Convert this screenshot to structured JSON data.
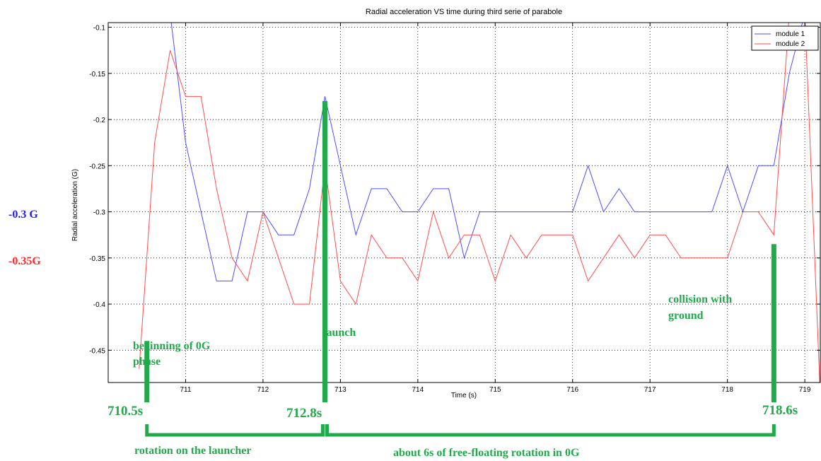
{
  "chart_data": {
    "type": "line",
    "title": "Radial acceleration VS time during third serie of parabole",
    "xlabel": "Time (s)",
    "ylabel": "Radial acceleration (G)",
    "xlim": [
      710.0,
      719.2
    ],
    "ylim": [
      -0.485,
      -0.095
    ],
    "x_ticks": [
      711,
      712,
      713,
      714,
      715,
      716,
      717,
      718,
      719
    ],
    "x_tick_labels": [
      "711",
      "712",
      "713",
      "714",
      "715",
      "716",
      "717",
      "718",
      "719"
    ],
    "y_ticks": [
      -0.1,
      -0.15,
      -0.2,
      -0.25,
      -0.3,
      -0.35,
      -0.4,
      -0.45
    ],
    "y_tick_labels": [
      "-0.1",
      "-0.15",
      "-0.2",
      "-0.25",
      "-0.3",
      "-0.35",
      "-0.4",
      "-0.45"
    ],
    "grid": true,
    "legend_position": "top-right",
    "series": [
      {
        "name": "module 1",
        "color": "#4d4dff",
        "points": [
          [
            710.8,
            -0.085
          ],
          [
            711.0,
            -0.225
          ],
          [
            711.2,
            -0.3
          ],
          [
            711.4,
            -0.375
          ],
          [
            711.6,
            -0.375
          ],
          [
            711.8,
            -0.3
          ],
          [
            712.0,
            -0.3
          ],
          [
            712.2,
            -0.325
          ],
          [
            712.4,
            -0.325
          ],
          [
            712.6,
            -0.275
          ],
          [
            712.8,
            -0.175
          ],
          [
            713.0,
            -0.25
          ],
          [
            713.2,
            -0.325
          ],
          [
            713.4,
            -0.275
          ],
          [
            713.6,
            -0.275
          ],
          [
            713.8,
            -0.3
          ],
          [
            714.0,
            -0.3
          ],
          [
            714.2,
            -0.275
          ],
          [
            714.4,
            -0.275
          ],
          [
            714.6,
            -0.35
          ],
          [
            714.8,
            -0.3
          ],
          [
            715.0,
            -0.3
          ],
          [
            715.2,
            -0.3
          ],
          [
            715.4,
            -0.3
          ],
          [
            715.6,
            -0.3
          ],
          [
            715.8,
            -0.3
          ],
          [
            716.0,
            -0.3
          ],
          [
            716.2,
            -0.25
          ],
          [
            716.4,
            -0.3
          ],
          [
            716.6,
            -0.275
          ],
          [
            716.8,
            -0.3
          ],
          [
            717.0,
            -0.3
          ],
          [
            717.2,
            -0.3
          ],
          [
            717.4,
            -0.3
          ],
          [
            717.6,
            -0.3
          ],
          [
            717.8,
            -0.3
          ],
          [
            718.0,
            -0.25
          ],
          [
            718.2,
            -0.3
          ],
          [
            718.4,
            -0.25
          ],
          [
            718.6,
            -0.25
          ],
          [
            718.8,
            -0.15
          ],
          [
            719.0,
            -0.085
          ]
        ]
      },
      {
        "name": "module 2",
        "color": "#ff4d4d",
        "points": [
          [
            710.4,
            -0.47
          ],
          [
            710.6,
            -0.225
          ],
          [
            710.8,
            -0.125
          ],
          [
            711.0,
            -0.175
          ],
          [
            711.2,
            -0.175
          ],
          [
            711.4,
            -0.275
          ],
          [
            711.6,
            -0.35
          ],
          [
            711.8,
            -0.375
          ],
          [
            712.0,
            -0.3
          ],
          [
            712.2,
            -0.35
          ],
          [
            712.4,
            -0.4
          ],
          [
            712.6,
            -0.4
          ],
          [
            712.8,
            -0.25
          ],
          [
            713.0,
            -0.375
          ],
          [
            713.2,
            -0.4
          ],
          [
            713.4,
            -0.325
          ],
          [
            713.6,
            -0.35
          ],
          [
            713.8,
            -0.35
          ],
          [
            714.0,
            -0.375
          ],
          [
            714.2,
            -0.3
          ],
          [
            714.4,
            -0.35
          ],
          [
            714.6,
            -0.325
          ],
          [
            714.8,
            -0.325
          ],
          [
            715.0,
            -0.375
          ],
          [
            715.2,
            -0.325
          ],
          [
            715.4,
            -0.35
          ],
          [
            715.6,
            -0.325
          ],
          [
            715.8,
            -0.325
          ],
          [
            716.0,
            -0.325
          ],
          [
            716.2,
            -0.375
          ],
          [
            716.4,
            -0.35
          ],
          [
            716.6,
            -0.325
          ],
          [
            716.8,
            -0.35
          ],
          [
            717.0,
            -0.325
          ],
          [
            717.2,
            -0.325
          ],
          [
            717.4,
            -0.35
          ],
          [
            717.6,
            -0.35
          ],
          [
            717.8,
            -0.35
          ],
          [
            718.0,
            -0.35
          ],
          [
            718.2,
            -0.3
          ],
          [
            718.4,
            -0.3
          ],
          [
            718.6,
            -0.325
          ],
          [
            718.8,
            -0.085
          ],
          [
            719.0,
            -0.085
          ],
          [
            719.2,
            -0.5
          ]
        ]
      }
    ]
  },
  "annotations": {
    "level_module1": {
      "text": "-0.3 G",
      "color": "#1f1fe6"
    },
    "level_module2": {
      "text": "-0.35G",
      "color": "#ff2a2a"
    },
    "markers": [
      {
        "time": 710.5,
        "label": "710.5s",
        "top_value": -0.44
      },
      {
        "time": 712.8,
        "label": "712.8s",
        "top_value": -0.18
      },
      {
        "time": 718.6,
        "label": "718.6s",
        "top_value": -0.335
      }
    ],
    "phase_begin_line1": "beginning of 0G",
    "phase_begin_line2": "phase",
    "launch": "launch",
    "collision_line1": "collision with",
    "collision_line2": "ground",
    "span_launcher": "rotation on the launcher",
    "span_float": "about 6s of free-floating  rotation in 0G",
    "annotation_color": "#22a94b"
  }
}
